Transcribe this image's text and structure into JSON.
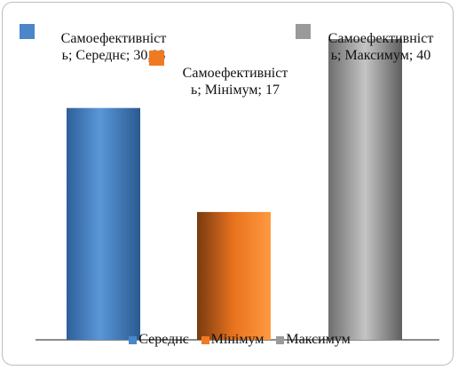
{
  "chart_data": {
    "type": "bar",
    "series": [
      {
        "name": "Самоефективність",
        "values": [
          30.83,
          17,
          40
        ],
        "value_labels": [
          "30,83",
          "17",
          "40"
        ],
        "colors": [
          "#4a86c8",
          "#f07a22",
          "#9a9a9a"
        ]
      }
    ],
    "categories": [
      "Середнє",
      "Мінімум",
      "Максимум"
    ],
    "label_separator": "; ",
    "legend": "bottom"
  }
}
